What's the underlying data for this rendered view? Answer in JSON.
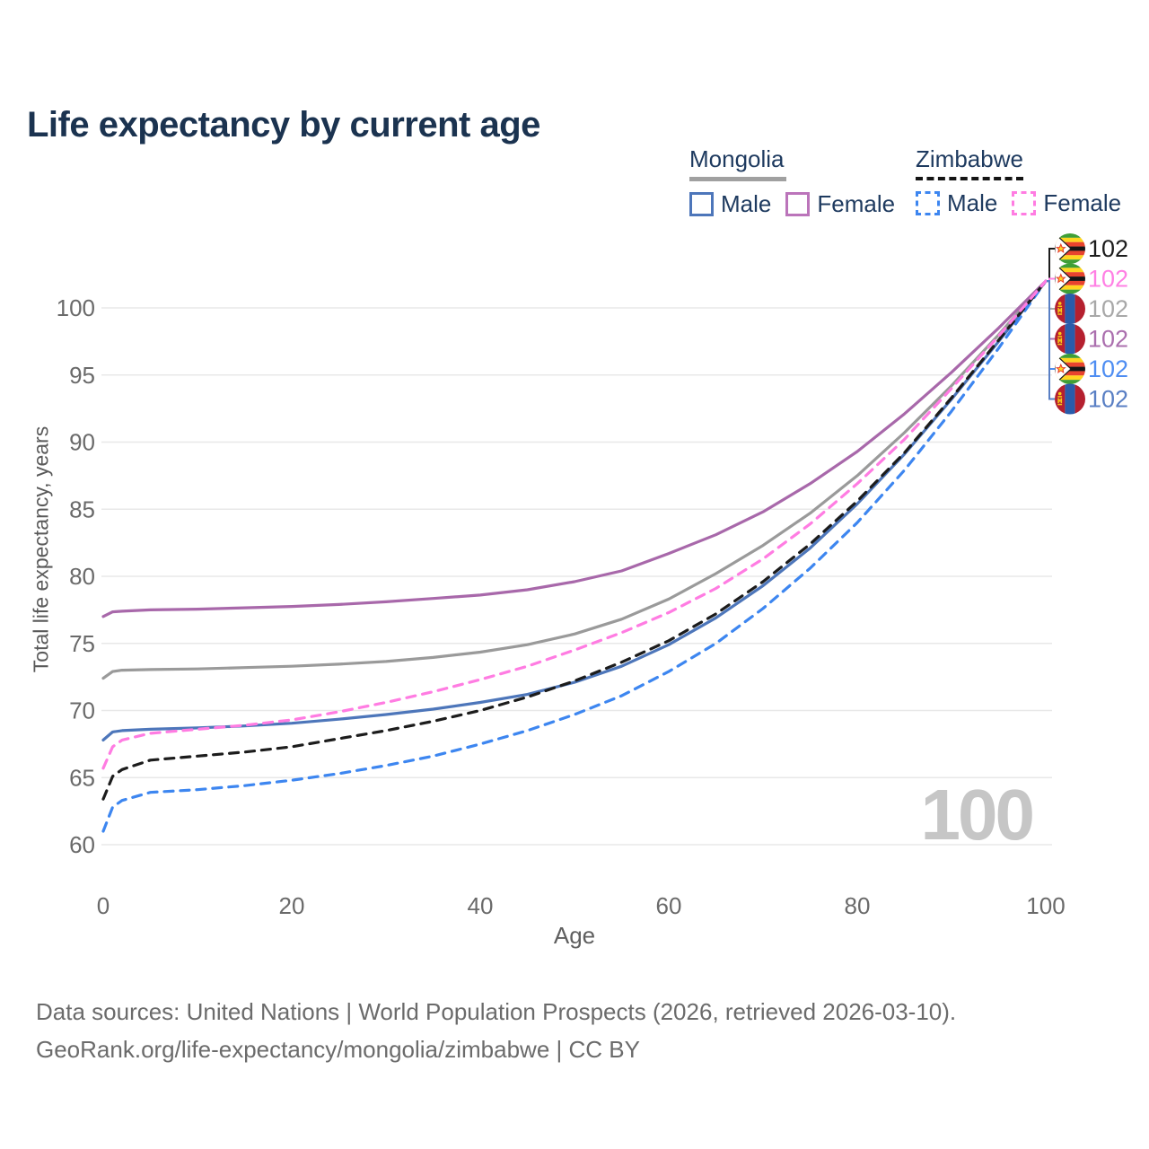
{
  "title": "Life expectancy by current age",
  "watermark_age": "100",
  "legend": {
    "groups": [
      {
        "name": "Mongolia",
        "line_style": "solid",
        "line_color": "#a0a0a0",
        "items": [
          {
            "label": "Male",
            "color": "#4d76ba",
            "dashed": false
          },
          {
            "label": "Female",
            "color": "#bb74ba",
            "dashed": false
          }
        ]
      },
      {
        "name": "Zimbabwe",
        "line_style": "dashed",
        "line_color": "#141414",
        "items": [
          {
            "label": "Male",
            "color": "#3d86f0",
            "dashed": true
          },
          {
            "label": "Female",
            "color": "#ff7ce2",
            "dashed": true
          }
        ]
      }
    ]
  },
  "chart_data": {
    "type": "line",
    "title": "Life expectancy by current age",
    "xlabel": "Age",
    "ylabel": "Total life expectancy, years",
    "xlim": [
      0,
      100
    ],
    "ylim": [
      58,
      103
    ],
    "xticks": [
      0,
      20,
      40,
      60,
      80,
      100
    ],
    "yticks": [
      60,
      65,
      70,
      75,
      80,
      85,
      90,
      95,
      100
    ],
    "grid": "horizontal",
    "legend_position": "top-right",
    "x": [
      0,
      1,
      2,
      5,
      10,
      15,
      20,
      25,
      30,
      35,
      40,
      45,
      50,
      55,
      60,
      65,
      70,
      75,
      80,
      85,
      90,
      95,
      100
    ],
    "series": [
      {
        "name": "Mongolia Male",
        "country": "Mongolia",
        "sex": "Male",
        "color": "#4d76ba",
        "dashed": false,
        "flag": "mongolia",
        "label_row": 5,
        "label_color": "#597fc4",
        "end_label": "102",
        "values": [
          67.8,
          68.4,
          68.5,
          68.6,
          68.7,
          68.85,
          69.05,
          69.35,
          69.7,
          70.1,
          70.6,
          71.2,
          72.1,
          73.3,
          74.9,
          76.9,
          79.3,
          82.1,
          85.4,
          89.1,
          93.2,
          97.5,
          102
        ]
      },
      {
        "name": "Mongolia",
        "country": "Mongolia",
        "sex": "Both",
        "color": "#9a9a9a",
        "dashed": false,
        "flag": "mongolia",
        "label_row": 2,
        "label_color": "#a8a8a8",
        "end_label": "102",
        "values": [
          72.4,
          72.9,
          73.0,
          73.05,
          73.1,
          73.2,
          73.3,
          73.45,
          73.65,
          73.95,
          74.35,
          74.9,
          75.7,
          76.8,
          78.3,
          80.2,
          82.3,
          84.7,
          87.5,
          90.7,
          94.2,
          98.0,
          102
        ]
      },
      {
        "name": "Mongolia Female",
        "country": "Mongolia",
        "sex": "Female",
        "color": "#a868aa",
        "dashed": false,
        "flag": "mongolia",
        "label_row": 3,
        "label_color": "#ab6fae",
        "end_label": "102",
        "values": [
          77.0,
          77.35,
          77.4,
          77.5,
          77.55,
          77.65,
          77.75,
          77.9,
          78.1,
          78.35,
          78.6,
          79.0,
          79.6,
          80.4,
          81.7,
          83.1,
          84.8,
          86.9,
          89.3,
          92.1,
          95.2,
          98.5,
          102
        ]
      },
      {
        "name": "Zimbabwe Male",
        "country": "Zimbabwe",
        "sex": "Male",
        "color": "#3d86f0",
        "dashed": true,
        "flag": "zimbabwe",
        "label_row": 4,
        "label_color": "#4e8df2",
        "end_label": "102",
        "values": [
          61.0,
          62.8,
          63.3,
          63.9,
          64.1,
          64.4,
          64.8,
          65.3,
          65.9,
          66.6,
          67.5,
          68.5,
          69.7,
          71.1,
          72.9,
          75.0,
          77.6,
          80.6,
          84.0,
          87.9,
          92.3,
          97.0,
          102
        ]
      },
      {
        "name": "Zimbabwe",
        "country": "Zimbabwe",
        "sex": "Both",
        "color": "#1c1c1c",
        "dashed": true,
        "flag": "zimbabwe",
        "label_row": 0,
        "label_color": "#1c1c1c",
        "end_label": "102",
        "values": [
          63.4,
          65.1,
          65.6,
          66.3,
          66.6,
          66.9,
          67.3,
          67.9,
          68.5,
          69.2,
          70.0,
          71.0,
          72.2,
          73.6,
          75.2,
          77.2,
          79.6,
          82.4,
          85.6,
          89.2,
          93.3,
          97.6,
          102
        ]
      },
      {
        "name": "Zimbabwe Female",
        "country": "Zimbabwe",
        "sex": "Female",
        "color": "#ff7ce2",
        "dashed": true,
        "flag": "zimbabwe",
        "label_row": 1,
        "label_color": "#ff80e4",
        "end_label": "102",
        "values": [
          65.7,
          67.3,
          67.8,
          68.3,
          68.6,
          68.9,
          69.3,
          69.9,
          70.6,
          71.4,
          72.3,
          73.3,
          74.5,
          75.8,
          77.3,
          79.1,
          81.3,
          83.9,
          86.9,
          90.2,
          94.0,
          97.9,
          102
        ]
      }
    ]
  },
  "footer": {
    "line1": "Data sources: United Nations | World Population Prospects (2026, retrieved 2026-03-10).",
    "line2": "GeoRank.org/life-expectancy/mongolia/zimbabwe | CC BY"
  }
}
